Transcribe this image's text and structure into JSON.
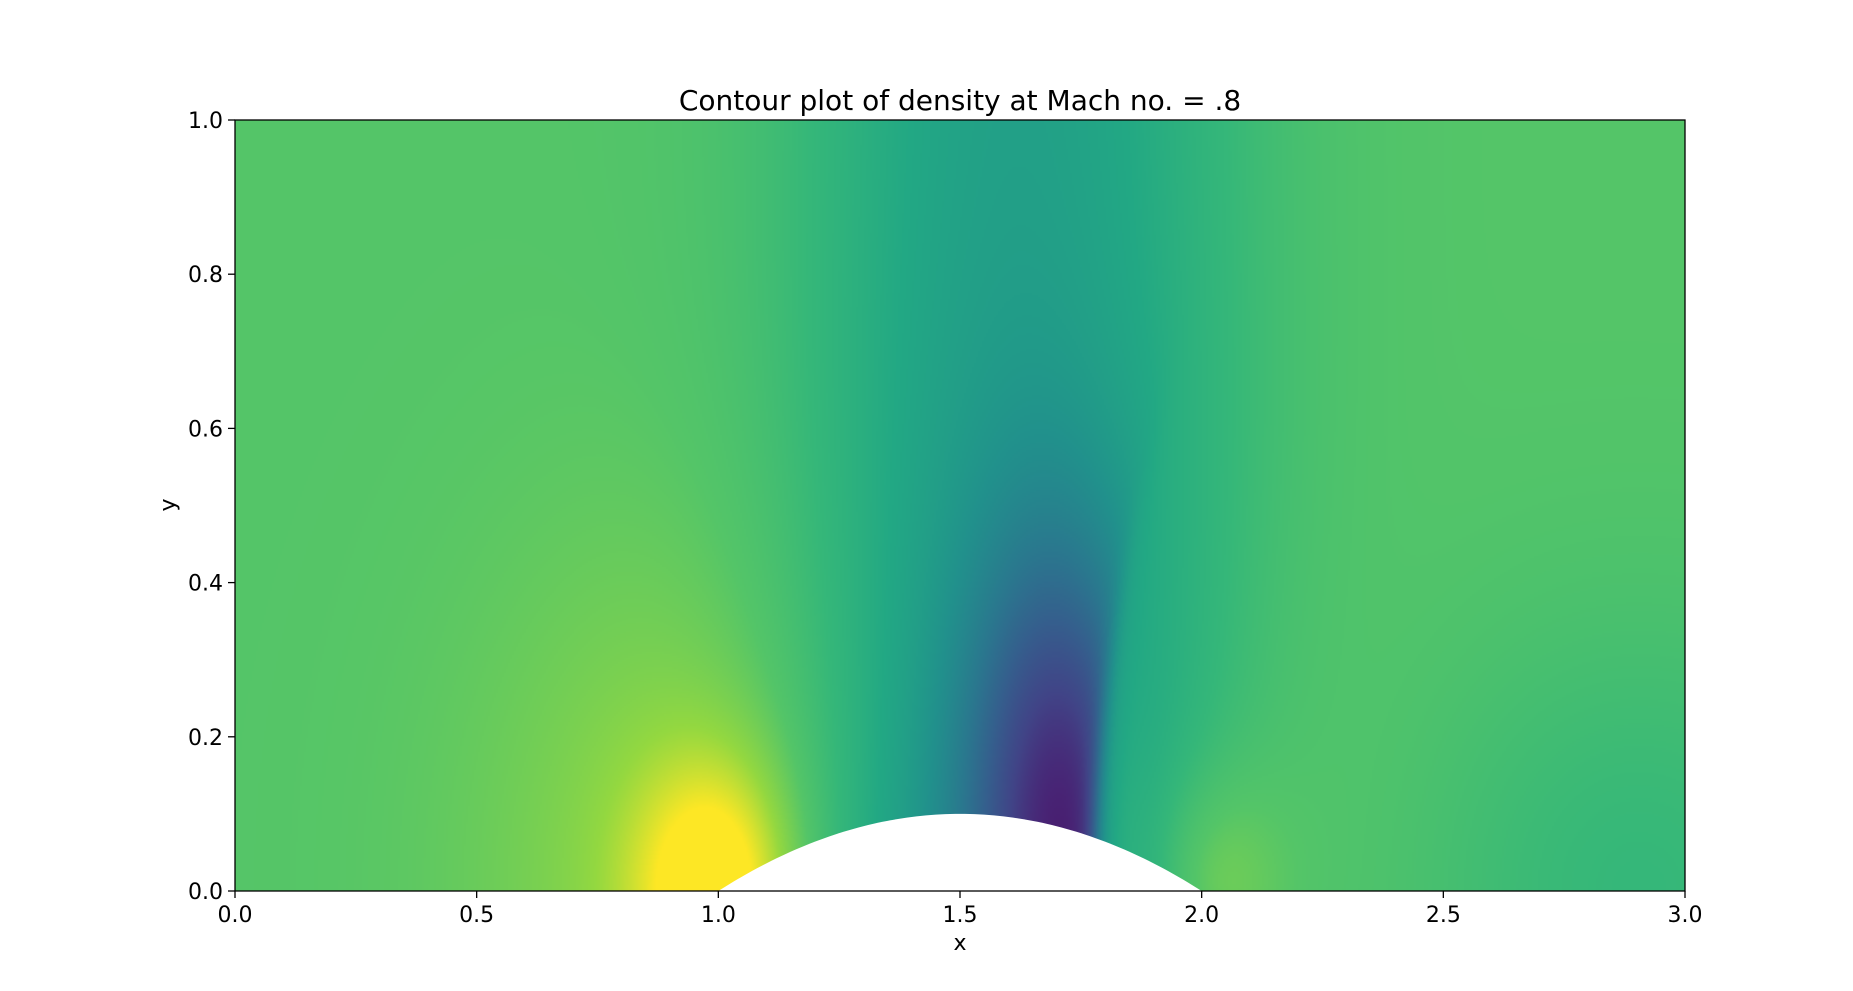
{
  "chart_data": {
    "type": "heatmap",
    "title": "Contour plot of density at Mach no. = .8",
    "xlabel": "x",
    "ylabel": "y",
    "xlim": [
      0.0,
      3.0
    ],
    "ylim": [
      0.0,
      1.0
    ],
    "xticks": [
      "0.0",
      "0.5",
      "1.0",
      "1.5",
      "2.0",
      "2.5",
      "3.0"
    ],
    "yticks": [
      "0.0",
      "0.2",
      "0.4",
      "0.6",
      "0.8",
      "1.0"
    ],
    "colormap": "viridis",
    "bump": {
      "x_start": 1.0,
      "x_end": 2.0,
      "peak_height": 0.1
    },
    "shock_x_at_bump": 1.78,
    "grid": false,
    "legend": "none"
  }
}
